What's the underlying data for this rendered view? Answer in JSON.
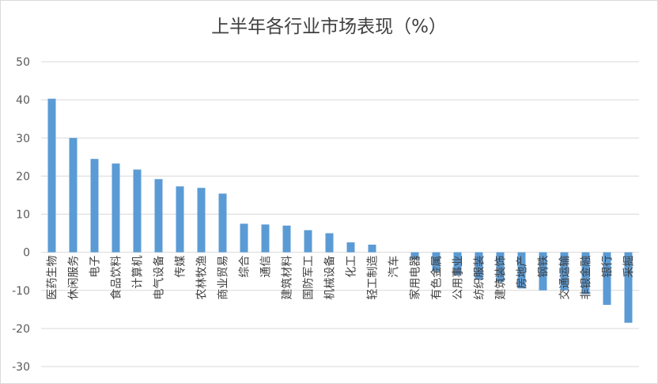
{
  "chart_data": {
    "type": "bar",
    "title": "上半年各行业市场表现（%）",
    "xlabel": "",
    "ylabel": "",
    "ylim": [
      -30,
      50
    ],
    "yticks": [
      50,
      40,
      30,
      20,
      10,
      0,
      -10,
      -20,
      -30
    ],
    "grid": true,
    "legend": "none",
    "bar_color": "#5b9bd5",
    "categories": [
      "医药生物",
      "休闲服务",
      "电子",
      "食品饮料",
      "计算机",
      "电气设备",
      "传媒",
      "农林牧渔",
      "商业贸易",
      "综合",
      "通信",
      "建筑材料",
      "国防军工",
      "机械设备",
      "化工",
      "轻工制造",
      "汽车",
      "家用电器",
      "有色金属",
      "公用事业",
      "纺织服装",
      "建筑装饰",
      "房地产",
      "钢铁",
      "交通运输",
      "非银金融",
      "银行",
      "采掘"
    ],
    "values": [
      40.3,
      30.0,
      24.5,
      23.3,
      21.7,
      19.2,
      17.3,
      16.9,
      15.4,
      7.5,
      7.3,
      7.0,
      5.8,
      5.0,
      2.6,
      2.0,
      0.0,
      -1.8,
      -5.0,
      -6.0,
      -7.2,
      -7.8,
      -9.5,
      -10.0,
      -10.0,
      -11.0,
      -13.8,
      -18.5
    ]
  }
}
